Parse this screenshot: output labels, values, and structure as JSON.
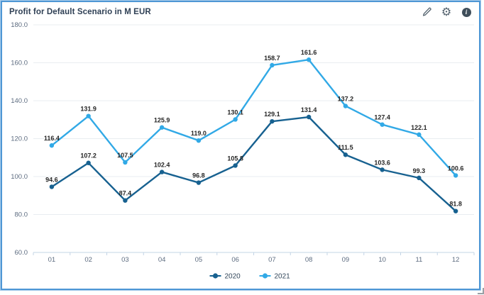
{
  "header": {
    "title": "Profit for Default Scenario in M EUR",
    "icons": [
      {
        "name": "edit-icon"
      },
      {
        "name": "settings-icon",
        "glyph": "⚙"
      },
      {
        "name": "info-icon",
        "glyph": "i"
      }
    ]
  },
  "colors": {
    "border": "#4e97d5",
    "border_outer": "#aacdeb",
    "title_text": "#2e3f54",
    "axis_text": "#5d6c80",
    "grid_line": "#e9edf1",
    "axis_line": "#c3d4e6",
    "data_label": "#262626",
    "legend_text": "#33475b",
    "icon": "#54636f",
    "series_2020": "#176190",
    "series_2021": "#31a9e6"
  },
  "chart_data": {
    "type": "line",
    "title": "Profit for Default Scenario in M EUR",
    "categories": [
      "01",
      "02",
      "03",
      "04",
      "05",
      "06",
      "07",
      "08",
      "09",
      "10",
      "11",
      "12"
    ],
    "series": [
      {
        "name": "2020",
        "color": "#176190",
        "values": [
          94.6,
          107.2,
          87.4,
          102.4,
          96.8,
          105.8,
          129.1,
          131.4,
          111.5,
          103.6,
          99.3,
          81.8
        ]
      },
      {
        "name": "2021",
        "color": "#31a9e6",
        "values": [
          116.4,
          131.9,
          107.5,
          125.9,
          119.0,
          130.1,
          158.7,
          161.6,
          137.2,
          127.4,
          122.1,
          100.6
        ]
      }
    ],
    "ylim": [
      60,
      180
    ],
    "yticks": [
      "180.0",
      "160.0",
      "140.0",
      "120.0",
      "100.0",
      "80.0",
      "60.0"
    ],
    "xlabel": "",
    "ylabel": "",
    "grid": "horizontal",
    "legend_position": "bottom-center",
    "data_labels": true
  }
}
